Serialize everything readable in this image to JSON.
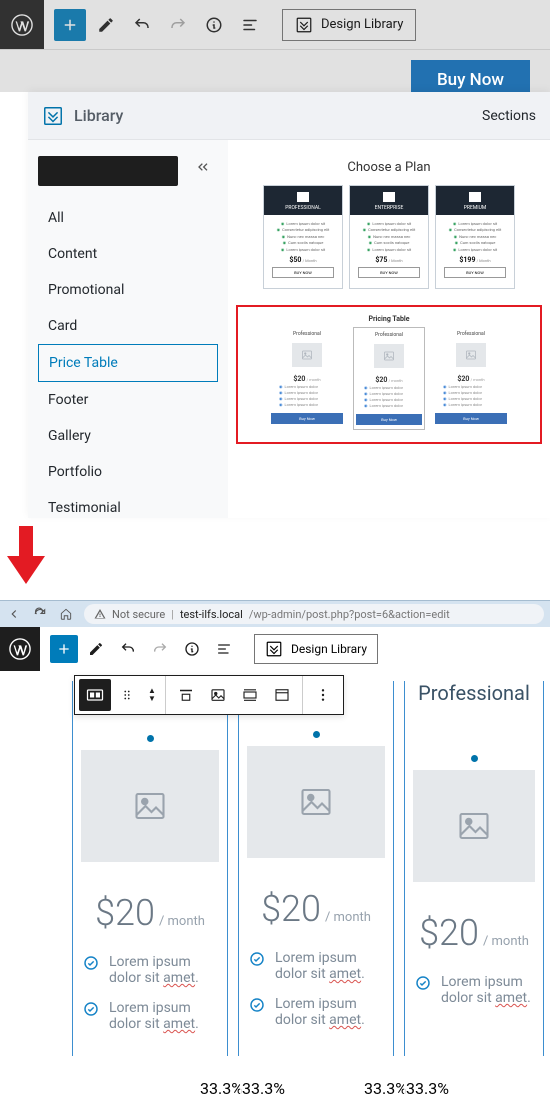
{
  "top": {
    "design_library_btn": "Design Library",
    "buy_now_peek": "Buy Now",
    "library": {
      "title": "Library",
      "tab": "Sections",
      "categories": [
        "All",
        "Content",
        "Promotional",
        "Card",
        "Price Table",
        "Footer",
        "Gallery",
        "Portfolio",
        "Testimonial"
      ],
      "active_category": "Price Table"
    },
    "preview1": {
      "title": "Choose a Plan",
      "plans": [
        {
          "name": "PROFESSIONAL",
          "price": "$50",
          "button": "BUY NOW"
        },
        {
          "name": "ENTERPRISE",
          "price": "$75",
          "button": "BUY NOW"
        },
        {
          "name": "PREMIUM",
          "price": "$199",
          "button": "BUY NOW"
        }
      ],
      "feature_lines": [
        "Lorem ipsum dolor sit",
        "Consectetur adipiscing elit",
        "Nunc nec massa nec",
        "Cum sociis natoque",
        "Lorem ipsum dolor sit"
      ],
      "price_suffix": "/ Month"
    },
    "preview2": {
      "title": "Pricing Table",
      "cols": [
        {
          "name": "Professional",
          "price": "$20",
          "button": "Buy Now"
        },
        {
          "name": "Professional",
          "price": "$20",
          "button": "Buy Now"
        },
        {
          "name": "Professional",
          "price": "$20",
          "button": "Buy Now"
        }
      ],
      "feature_lines": [
        "Lorem ipsum dolor",
        "Lorem ipsum dolor",
        "Lorem ipsum dolor",
        "Lorem ipsum dolor"
      ],
      "price_suffix": "/ month"
    }
  },
  "bottom": {
    "browser": {
      "not_secure": "Not secure",
      "host": "test-ilfs.local",
      "path": "/wp-admin/post.php?post=6&action=edit"
    },
    "design_library_btn": "Design Library",
    "columns": [
      {
        "title": "",
        "price": "$20",
        "per": "/ month"
      },
      {
        "title": "",
        "price": "$20",
        "per": "/ month"
      },
      {
        "title": "Professional",
        "price": "$20",
        "per": "/ month"
      }
    ],
    "feature": {
      "line1": "Lorem ipsum dolor sit",
      "underlined": "amet"
    },
    "percent": "33.3%"
  },
  "colors": {
    "wp_blue": "#007cba",
    "accent_red": "#e31b23",
    "arrow_red": "#e31b23"
  }
}
